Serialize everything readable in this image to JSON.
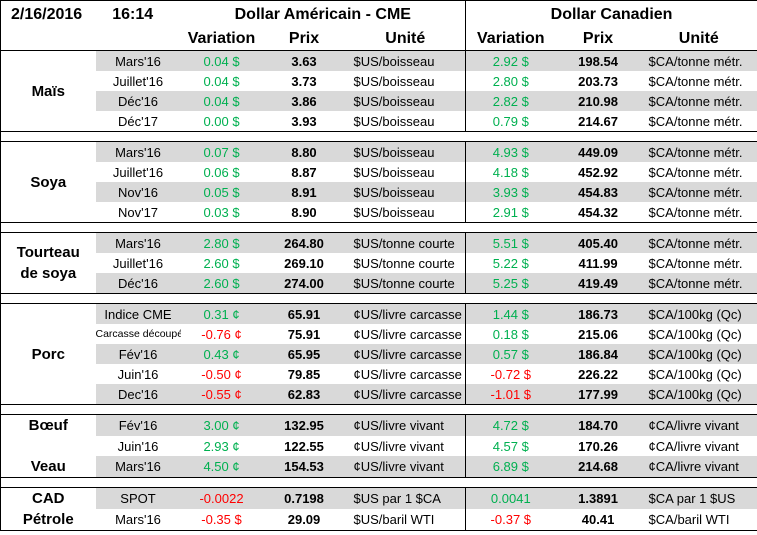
{
  "header": {
    "date": "2/16/2016",
    "time": "16:14",
    "usd": {
      "title": "Dollar Américain - CME",
      "columns": [
        "Variation",
        "Prix",
        "Unité"
      ]
    },
    "cad": {
      "title": "Dollar Canadien",
      "columns": [
        "Variation",
        "Prix",
        "Unité"
      ]
    }
  },
  "sections": [
    {
      "groups": [
        {
          "label": [
            "Maïs"
          ],
          "rows": [
            [
              "Mars'16",
              "0.04 $",
              "3.63",
              "$US/boisseau",
              "2.92 $",
              "198.54",
              "$CA/tonne métr."
            ],
            [
              "Juillet'16",
              "0.04 $",
              "3.73",
              "$US/boisseau",
              "2.80 $",
              "203.73",
              "$CA/tonne métr."
            ],
            [
              "Déc'16",
              "0.04 $",
              "3.86",
              "$US/boisseau",
              "2.82 $",
              "210.98",
              "$CA/tonne métr."
            ],
            [
              "Déc'17",
              "0.00 $",
              "3.93",
              "$US/boisseau",
              "0.79 $",
              "214.67",
              "$CA/tonne métr."
            ]
          ]
        }
      ]
    },
    {
      "groups": [
        {
          "label": [
            "Soya"
          ],
          "rows": [
            [
              "Mars'16",
              "0.07 $",
              "8.80",
              "$US/boisseau",
              "4.93 $",
              "449.09",
              "$CA/tonne métr."
            ],
            [
              "Juillet'16",
              "0.06 $",
              "8.87",
              "$US/boisseau",
              "4.18 $",
              "452.92",
              "$CA/tonne métr."
            ],
            [
              "Nov'16",
              "0.05 $",
              "8.91",
              "$US/boisseau",
              "3.93 $",
              "454.83",
              "$CA/tonne métr."
            ],
            [
              "Nov'17",
              "0.03 $",
              "8.90",
              "$US/boisseau",
              "2.91 $",
              "454.32",
              "$CA/tonne métr."
            ]
          ]
        }
      ]
    },
    {
      "groups": [
        {
          "label": [
            "Tourteau",
            "de soya"
          ],
          "rows": [
            [
              "Mars'16",
              "2.80 $",
              "264.80",
              "$US/tonne courte",
              "5.51 $",
              "405.40",
              "$CA/tonne métr."
            ],
            [
              "Juillet'16",
              "2.60 $",
              "269.10",
              "$US/tonne courte",
              "5.22 $",
              "411.99",
              "$CA/tonne métr."
            ],
            [
              "Déc'16",
              "2.60 $",
              "274.00",
              "$US/tonne courte",
              "5.25 $",
              "419.49",
              "$CA/tonne métr."
            ]
          ]
        }
      ]
    },
    {
      "groups": [
        {
          "label": [
            "Porc"
          ],
          "rows": [
            [
              "Indice CME",
              "0.31 ¢",
              "65.91",
              "¢US/livre carcasse",
              "1.44 $",
              "186.73",
              "$CA/100kg (Qc)"
            ],
            [
              "Carcasse découpée",
              "-0.76 ¢",
              "75.91",
              "¢US/livre carcasse",
              "0.18 $",
              "215.06",
              "$CA/100kg (Qc)"
            ],
            [
              "Fév'16",
              "0.43 ¢",
              "65.95",
              "¢US/livre carcasse",
              "0.57 $",
              "186.84",
              "$CA/100kg (Qc)"
            ],
            [
              "Juin'16",
              "-0.50 ¢",
              "79.85",
              "¢US/livre carcasse",
              "-0.72 $",
              "226.22",
              "$CA/100kg (Qc)"
            ],
            [
              "Dec'16",
              "-0.55 ¢",
              "62.83",
              "¢US/livre carcasse",
              "-1.01 $",
              "177.99",
              "$CA/100kg (Qc)"
            ]
          ]
        }
      ]
    },
    {
      "groups": [
        {
          "label": [
            "Bœuf"
          ],
          "rows": [
            [
              "Fév'16",
              "3.00 ¢",
              "132.95",
              "¢US/livre vivant",
              "4.72 $",
              "184.70",
              "¢CA/livre vivant"
            ]
          ]
        },
        {
          "rows": [
            [
              "Juin'16",
              "2.93 ¢",
              "122.55",
              "¢US/livre vivant",
              "4.57 $",
              "170.26",
              "¢CA/livre vivant"
            ]
          ]
        },
        {
          "label": [
            "Veau"
          ],
          "rows": [
            [
              "Mars'16",
              "4.50 ¢",
              "154.53",
              "¢US/livre vivant",
              "6.89 $",
              "214.68",
              "¢CA/livre vivant"
            ]
          ]
        }
      ]
    },
    {
      "groups": [
        {
          "label": [
            "CAD"
          ],
          "rows": [
            [
              "SPOT",
              "-0.0022",
              "0.7198",
              "$US par 1 $CA",
              "0.0041",
              "1.3891",
              "$CA par 1 $US"
            ]
          ]
        },
        {
          "label": [
            "Pétrole"
          ],
          "rows": [
            [
              "Mars'16",
              "-0.35 $",
              "29.09",
              "$US/baril WTI",
              "-0.37 $",
              "40.41",
              "$CA/baril WTI"
            ]
          ]
        }
      ]
    }
  ]
}
